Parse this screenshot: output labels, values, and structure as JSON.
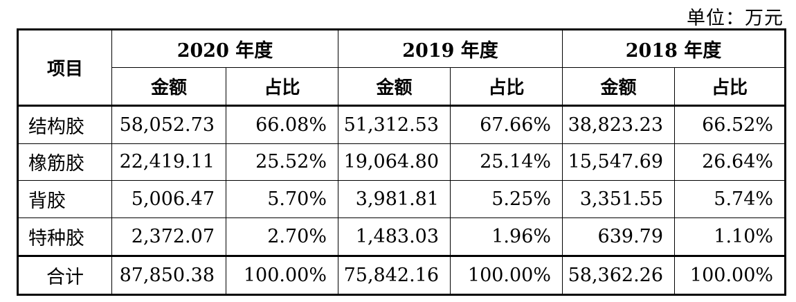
{
  "unit": "单位：万元",
  "header": {
    "item_label": "项目",
    "years": [
      "2020 年度",
      "2019 年度",
      "2018 年度"
    ],
    "amount_label": "金额",
    "share_label": "占比"
  },
  "rows": [
    {
      "label": "结构胶",
      "values": [
        "58,052.73",
        "66.08%",
        "51,312.53",
        "67.66%",
        "38,823.23",
        "66.52%"
      ]
    },
    {
      "label": "橡筋胶",
      "values": [
        "22,419.11",
        "25.52%",
        "19,064.80",
        "25.14%",
        "15,547.69",
        "26.64%"
      ]
    },
    {
      "label": "背胶",
      "values": [
        "5,006.47",
        "5.70%",
        "3,981.81",
        "5.25%",
        "3,351.55",
        "5.74%"
      ]
    },
    {
      "label": "特种胶",
      "values": [
        "2,372.07",
        "2.70%",
        "1,483.03",
        "1.96%",
        "639.79",
        "1.10%"
      ]
    }
  ],
  "total": {
    "label": "合计",
    "values": [
      "87,850.38",
      "100.00%",
      "75,842.16",
      "100.00%",
      "58,362.26",
      "100.00%"
    ]
  }
}
